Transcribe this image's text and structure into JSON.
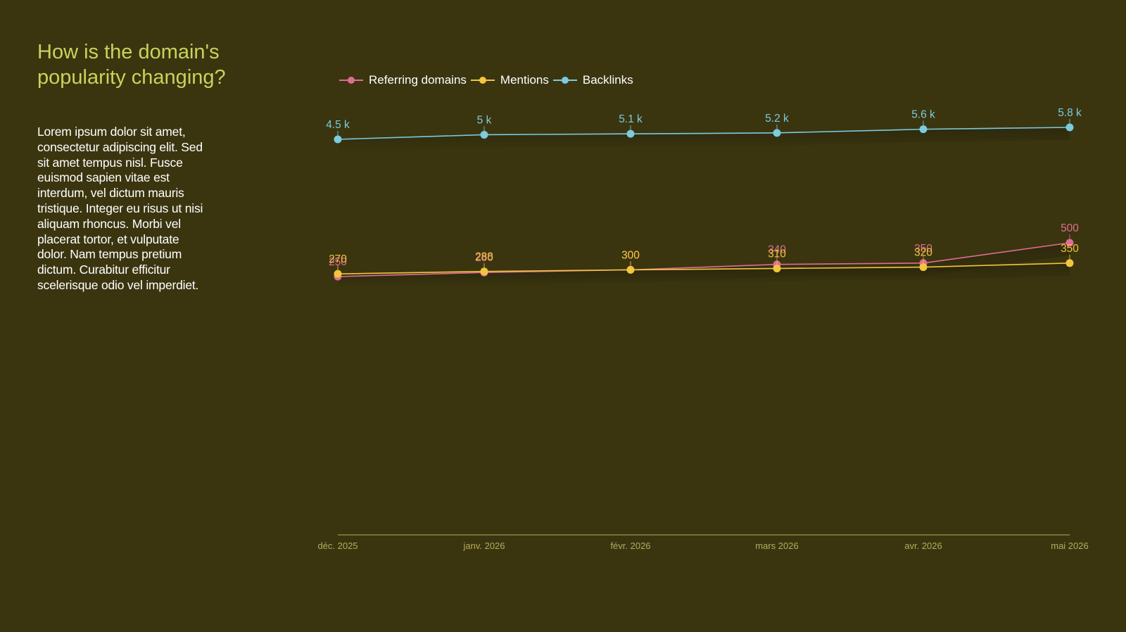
{
  "header": {
    "title": "How is the domain's popularity changing?",
    "description": "Lorem ipsum dolor sit amet, consectetur adipiscing elit. Sed sit amet tempus nisl. Fusce euismod sapien vitae est interdum, vel dictum mauris tristique. Integer eu risus ut nisi aliquam rhoncus. Morbi vel placerat tortor, et vulputate dolor. Nam tempus pretium dictum. Curabitur efficitur scelerisque odio vel imperdiet."
  },
  "colors": {
    "background": "#3a350f",
    "title": "#c9d35c",
    "axis": "#8c8440",
    "tick": "#b5ac5c"
  },
  "chart_data": {
    "type": "line",
    "categories": [
      "déc. 2025",
      "janv. 2026",
      "févr. 2026",
      "mars 2026",
      "avr. 2026",
      "mai 2026"
    ],
    "series": [
      {
        "name": "Referring domains",
        "color": "#e06c94",
        "values": [
          250,
          280,
          300,
          340,
          350,
          500
        ],
        "labels": [
          "250",
          "280",
          "300",
          "340",
          "350",
          "500"
        ]
      },
      {
        "name": "Mentions",
        "color": "#f2c53d",
        "values": [
          270,
          288,
          300,
          310,
          320,
          350
        ],
        "labels": [
          "270",
          "288",
          "300",
          "310",
          "320",
          "350"
        ]
      },
      {
        "name": "Backlinks",
        "color": "#7ccbdf",
        "values": [
          4500,
          5000,
          5100,
          5200,
          5600,
          5800
        ],
        "labels": [
          "4.5 k",
          "5 k",
          "5.1 k",
          "5.2 k",
          "5.6 k",
          "5.8 k"
        ]
      }
    ],
    "legend": "top-left",
    "grid": false
  }
}
